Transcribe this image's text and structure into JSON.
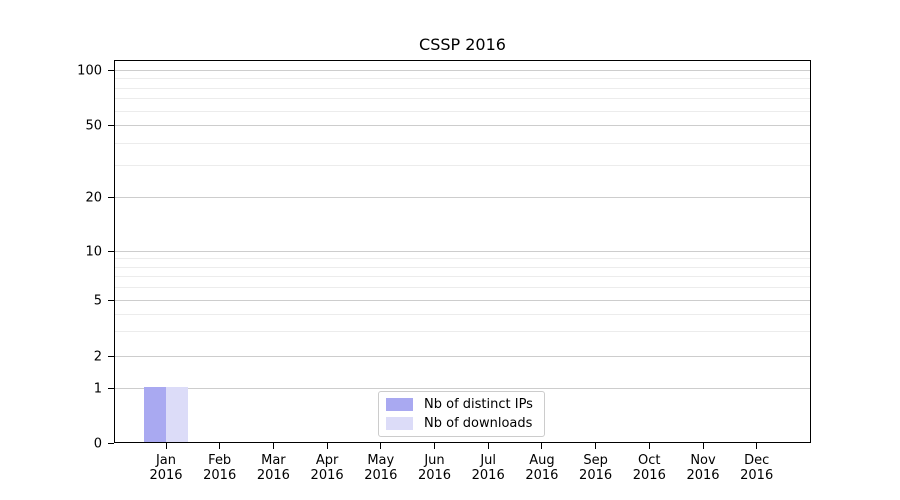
{
  "title": "CSSP 2016",
  "chart_data": {
    "type": "bar",
    "title": "CSSP 2016",
    "categories": [
      "Jan 2016",
      "Feb 2016",
      "Mar 2016",
      "Apr 2016",
      "May 2016",
      "Jun 2016",
      "Jul 2016",
      "Aug 2016",
      "Sep 2016",
      "Oct 2016",
      "Nov 2016",
      "Dec 2016"
    ],
    "series": [
      {
        "name": "Nb of distinct IPs",
        "color": "#a9a9f1",
        "values": [
          1,
          0,
          0,
          0,
          0,
          0,
          0,
          0,
          0,
          0,
          0,
          0
        ]
      },
      {
        "name": "Nb of downloads",
        "color": "#dcdcf8",
        "values": [
          1,
          0,
          0,
          0,
          0,
          0,
          0,
          0,
          0,
          0,
          0,
          0
        ]
      }
    ],
    "xlabel": "",
    "ylabel": "",
    "yscale": "symlog",
    "ylim": [
      0,
      115
    ],
    "y_major_ticks": [
      100,
      50,
      20,
      10,
      5,
      2,
      1,
      0
    ],
    "y_minor_ticks": [
      90,
      80,
      70,
      60,
      40,
      30,
      9,
      8,
      7,
      6,
      4,
      3
    ],
    "grid": "horizontal major+minor",
    "legend_position": "lower center"
  }
}
